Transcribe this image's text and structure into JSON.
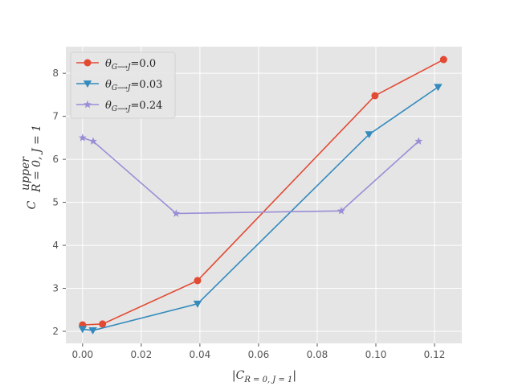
{
  "chart_data": {
    "type": "line",
    "title": "",
    "xlabel": "|C_{R=0,J=1}|",
    "ylabel": "C^{upper}_{R=0,J=1}",
    "xlim": [
      -0.0057,
      0.1293
    ],
    "ylim": [
      1.72,
      8.62
    ],
    "xticks": [
      0.0,
      0.02,
      0.04,
      0.06,
      0.08,
      0.1,
      0.12
    ],
    "xtick_labels": [
      "0.00",
      "0.02",
      "0.04",
      "0.06",
      "0.08",
      "0.10",
      "0.12"
    ],
    "yticks": [
      2,
      3,
      4,
      5,
      6,
      7,
      8
    ],
    "ytick_labels": [
      "2",
      "3",
      "4",
      "5",
      "6",
      "7",
      "8"
    ],
    "grid": true,
    "legend_position": "top-left",
    "series": [
      {
        "name": "θ_{G→J}=0.0",
        "legend_main": "θ",
        "legend_sub": "G⟶J",
        "legend_value": "=0.0",
        "color": "#E24A33",
        "marker": "circle",
        "x": [
          0.0,
          0.0068,
          0.0392,
          0.0997,
          0.1231
        ],
        "y": [
          2.15,
          2.17,
          3.18,
          7.48,
          8.32
        ]
      },
      {
        "name": "θ_{G→J}=0.03",
        "legend_main": "θ",
        "legend_sub": "G⟶J",
        "legend_value": "=0.03",
        "color": "#348ABD",
        "marker": "triangle-down",
        "x": [
          0.0,
          0.0035,
          0.0392,
          0.0977,
          0.1212
        ],
        "y": [
          2.05,
          2.02,
          2.64,
          6.58,
          7.68
        ]
      },
      {
        "name": "θ_{G→J}=0.24",
        "legend_main": "θ",
        "legend_sub": "G⟶J",
        "legend_value": "=0.24",
        "color": "#988ED5",
        "marker": "star",
        "x": [
          0.0,
          0.0036,
          0.0319,
          0.0882,
          0.1146
        ],
        "y": [
          6.5,
          6.42,
          4.74,
          4.8,
          6.42
        ]
      }
    ]
  }
}
